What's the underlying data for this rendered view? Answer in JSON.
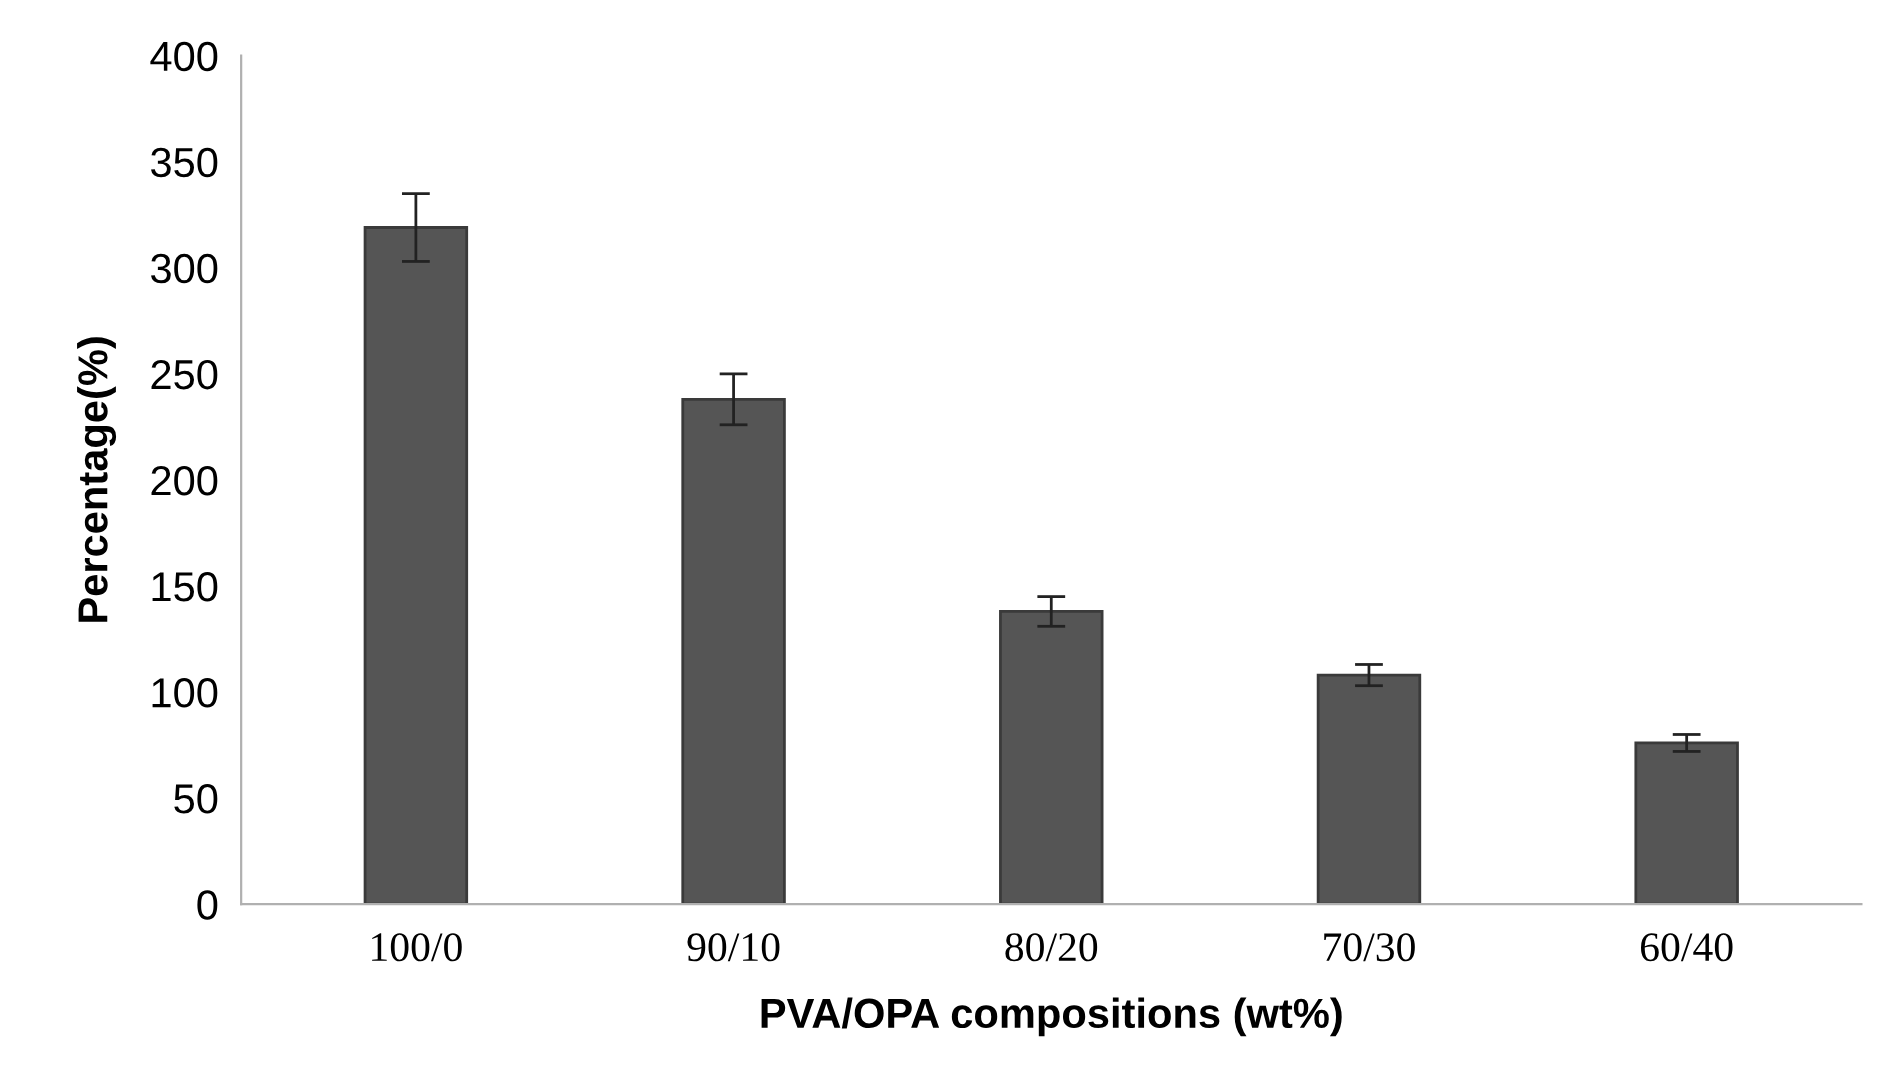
{
  "chart_data": {
    "type": "bar",
    "xlabel": "PVA/OPA compositions (wt%)",
    "ylabel": "Percentage(%)",
    "categories": [
      "100/0",
      "90/10",
      "80/20",
      "70/30",
      "60/40"
    ],
    "values": [
      319,
      238,
      138,
      108,
      76
    ],
    "errors": [
      16,
      12,
      7,
      5,
      4
    ],
    "color": "#555555",
    "ylim": [
      0,
      400
    ],
    "yticks": [
      0,
      50,
      100,
      150,
      200,
      250,
      300,
      350,
      400
    ],
    "grid": false
  }
}
